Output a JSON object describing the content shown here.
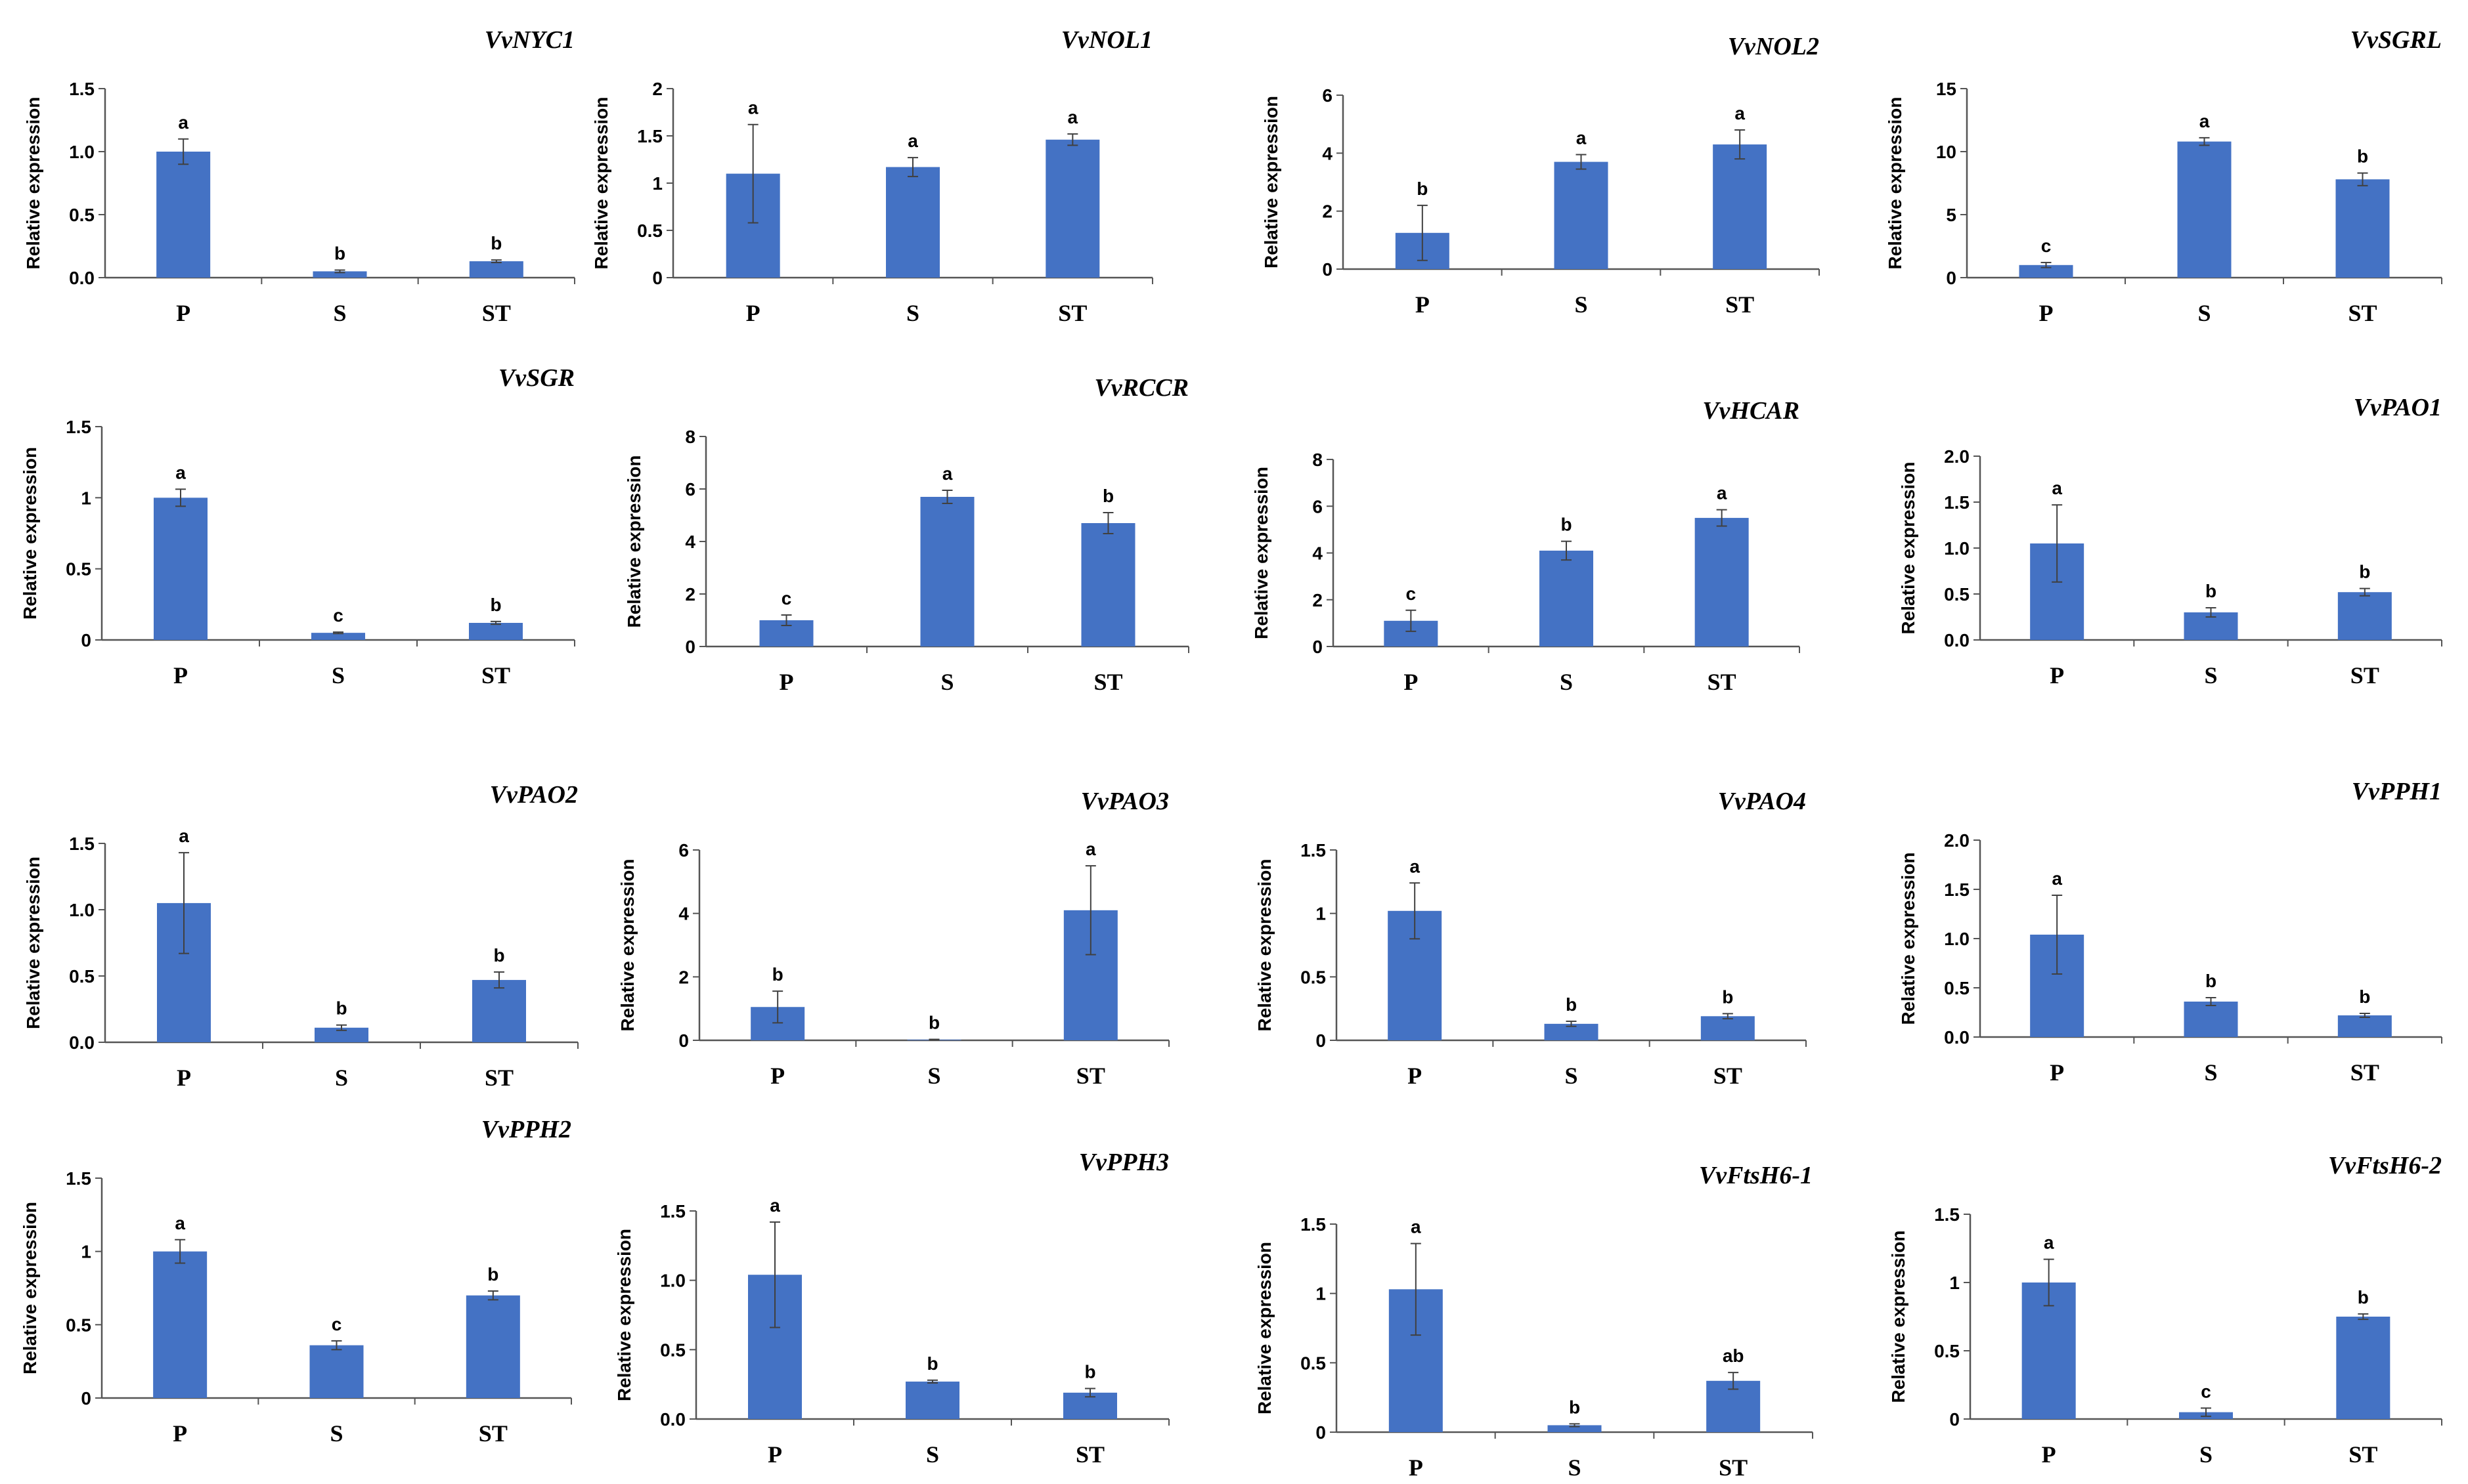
{
  "chart_data": [
    {
      "type": "bar",
      "title": "VvNYC1",
      "ylabel": "Relative expression",
      "categories": [
        "P",
        "S",
        "ST"
      ],
      "values": [
        1.0,
        0.05,
        0.13
      ],
      "errors": [
        0.1,
        0.01,
        0.01
      ],
      "letters": [
        "a",
        "b",
        "b"
      ],
      "ylim": [
        0,
        1.5
      ],
      "yticks": [
        0,
        0.5,
        1.0,
        1.5
      ],
      "ytick_labels": [
        "0.0",
        "0.5",
        "1.0",
        "1.5"
      ]
    },
    {
      "type": "bar",
      "title": "VvNOL1",
      "ylabel": "Relative expression",
      "categories": [
        "P",
        "S",
        "ST"
      ],
      "values": [
        1.1,
        1.17,
        1.46
      ],
      "errors": [
        0.52,
        0.1,
        0.06
      ],
      "letters": [
        "a",
        "a",
        "a"
      ],
      "ylim": [
        0,
        2
      ],
      "yticks": [
        0,
        0.5,
        1,
        1.5,
        2
      ],
      "ytick_labels": [
        "0",
        "0.5",
        "1",
        "1.5",
        "2"
      ]
    },
    {
      "type": "bar",
      "title": "VvNOL2",
      "ylabel": "Relative expression",
      "categories": [
        "P",
        "S",
        "ST"
      ],
      "values": [
        1.25,
        3.7,
        4.3
      ],
      "errors": [
        0.95,
        0.25,
        0.5
      ],
      "letters": [
        "b",
        "a",
        "a"
      ],
      "ylim": [
        0,
        6
      ],
      "yticks": [
        0,
        2,
        4,
        6
      ],
      "ytick_labels": [
        "0",
        "2",
        "4",
        "6"
      ]
    },
    {
      "type": "bar",
      "title": "VvSGRL",
      "ylabel": "Relative expression",
      "categories": [
        "P",
        "S",
        "ST"
      ],
      "values": [
        1.0,
        10.8,
        7.8
      ],
      "errors": [
        0.2,
        0.3,
        0.5
      ],
      "letters": [
        "c",
        "a",
        "b"
      ],
      "ylim": [
        0,
        15
      ],
      "yticks": [
        0,
        5,
        10,
        15
      ],
      "ytick_labels": [
        "0",
        "5",
        "10",
        "15"
      ]
    },
    {
      "type": "bar",
      "title": "VvSGR",
      "ylabel": "Relative expression",
      "categories": [
        "P",
        "S",
        "ST"
      ],
      "values": [
        1.0,
        0.05,
        0.12
      ],
      "errors": [
        0.06,
        0.005,
        0.01
      ],
      "letters": [
        "a",
        "c",
        "b"
      ],
      "ylim": [
        0,
        1.5
      ],
      "yticks": [
        0,
        0.5,
        1,
        1.5
      ],
      "ytick_labels": [
        "0",
        "0.5",
        "1",
        "1.5"
      ]
    },
    {
      "type": "bar",
      "title": "VvRCCR",
      "ylabel": "Relative expression",
      "categories": [
        "P",
        "S",
        "ST"
      ],
      "values": [
        1.0,
        5.7,
        4.7
      ],
      "errors": [
        0.2,
        0.25,
        0.4
      ],
      "letters": [
        "c",
        "a",
        "b"
      ],
      "ylim": [
        0,
        8
      ],
      "yticks": [
        0,
        2,
        4,
        6,
        8
      ],
      "ytick_labels": [
        "0",
        "2",
        "4",
        "6",
        "8"
      ]
    },
    {
      "type": "bar",
      "title": "VvHCAR",
      "ylabel": "Relative expression",
      "categories": [
        "P",
        "S",
        "ST"
      ],
      "values": [
        1.1,
        4.1,
        5.5
      ],
      "errors": [
        0.45,
        0.4,
        0.35
      ],
      "letters": [
        "c",
        "b",
        "a"
      ],
      "ylim": [
        0,
        8
      ],
      "yticks": [
        0,
        2,
        4,
        6,
        8
      ],
      "ytick_labels": [
        "0",
        "2",
        "4",
        "6",
        "8"
      ]
    },
    {
      "type": "bar",
      "title": "VvPAO1",
      "ylabel": "Relative expression",
      "categories": [
        "P",
        "S",
        "ST"
      ],
      "values": [
        1.05,
        0.3,
        0.52
      ],
      "errors": [
        0.42,
        0.05,
        0.04
      ],
      "letters": [
        "a",
        "b",
        "b"
      ],
      "ylim": [
        0,
        2.0
      ],
      "yticks": [
        0,
        0.5,
        1.0,
        1.5,
        2.0
      ],
      "ytick_labels": [
        "0.0",
        "0.5",
        "1.0",
        "1.5",
        "2.0"
      ]
    },
    {
      "type": "bar",
      "title": "VvPAO2",
      "ylabel": "Relative expression",
      "categories": [
        "P",
        "S",
        "ST"
      ],
      "values": [
        1.05,
        0.11,
        0.47
      ],
      "errors": [
        0.38,
        0.02,
        0.06
      ],
      "letters": [
        "a",
        "b",
        "b"
      ],
      "ylim": [
        0,
        1.5
      ],
      "yticks": [
        0,
        0.5,
        1.0,
        1.5
      ],
      "ytick_labels": [
        "0.0",
        "0.5",
        "1.0",
        "1.5"
      ]
    },
    {
      "type": "bar",
      "title": "VvPAO3",
      "ylabel": "Relative expression",
      "categories": [
        "P",
        "S",
        "ST"
      ],
      "values": [
        1.05,
        0.02,
        4.1
      ],
      "errors": [
        0.5,
        0.01,
        1.4
      ],
      "letters": [
        "b",
        "b",
        "a"
      ],
      "ylim": [
        0,
        6
      ],
      "yticks": [
        0,
        2,
        4,
        6
      ],
      "ytick_labels": [
        "0",
        "2",
        "4",
        "6"
      ]
    },
    {
      "type": "bar",
      "title": "VvPAO4",
      "ylabel": "Relative expression",
      "categories": [
        "P",
        "S",
        "ST"
      ],
      "values": [
        1.02,
        0.13,
        0.19
      ],
      "errors": [
        0.22,
        0.02,
        0.02
      ],
      "letters": [
        "a",
        "b",
        "b"
      ],
      "ylim": [
        0,
        1.5
      ],
      "yticks": [
        0,
        0.5,
        1,
        1.5
      ],
      "ytick_labels": [
        "0",
        "0.5",
        "1",
        "1.5"
      ]
    },
    {
      "type": "bar",
      "title": "VvPPH1",
      "ylabel": "Relative expression",
      "categories": [
        "P",
        "S",
        "ST"
      ],
      "values": [
        1.04,
        0.36,
        0.22
      ],
      "errors": [
        0.4,
        0.04,
        0.02
      ],
      "letters": [
        "a",
        "b",
        "b"
      ],
      "ylim": [
        0,
        2.0
      ],
      "yticks": [
        0,
        0.5,
        1.0,
        1.5,
        2.0
      ],
      "ytick_labels": [
        "0.0",
        "0.5",
        "1.0",
        "1.5",
        "2.0"
      ]
    },
    {
      "type": "bar",
      "title": "VvPPH2",
      "ylabel": "Relative expression",
      "categories": [
        "P",
        "S",
        "ST"
      ],
      "values": [
        1.0,
        0.36,
        0.7
      ],
      "errors": [
        0.08,
        0.03,
        0.03
      ],
      "letters": [
        "a",
        "c",
        "b"
      ],
      "ylim": [
        0,
        1.5
      ],
      "yticks": [
        0,
        0.5,
        1,
        1.5
      ],
      "ytick_labels": [
        "0",
        "0.5",
        "1",
        "1.5"
      ]
    },
    {
      "type": "bar",
      "title": "VvPPH3",
      "ylabel": "Relative expression",
      "categories": [
        "P",
        "S",
        "ST"
      ],
      "values": [
        1.04,
        0.27,
        0.19
      ],
      "errors": [
        0.38,
        0.01,
        0.03
      ],
      "letters": [
        "a",
        "b",
        "b"
      ],
      "ylim": [
        0,
        1.5
      ],
      "yticks": [
        0,
        0.5,
        1.0,
        1.5
      ],
      "ytick_labels": [
        "0.0",
        "0.5",
        "1.0",
        "1.5"
      ]
    },
    {
      "type": "bar",
      "title": "VvFtsH6-1",
      "ylabel": "Relative expression",
      "categories": [
        "P",
        "S",
        "ST"
      ],
      "values": [
        1.03,
        0.05,
        0.37
      ],
      "errors": [
        0.33,
        0.01,
        0.06
      ],
      "letters": [
        "a",
        "b",
        "ab"
      ],
      "ylim": [
        0,
        1.5
      ],
      "yticks": [
        0,
        0.5,
        1,
        1.5
      ],
      "ytick_labels": [
        "0",
        "0.5",
        "1",
        "1.5"
      ]
    },
    {
      "type": "bar",
      "title": "VvFtsH6-2",
      "ylabel": "Relative expression",
      "categories": [
        "P",
        "S",
        "ST"
      ],
      "values": [
        1.0,
        0.05,
        0.75
      ],
      "errors": [
        0.17,
        0.03,
        0.02
      ],
      "letters": [
        "a",
        "c",
        "b"
      ],
      "ylim": [
        0,
        1.5
      ],
      "yticks": [
        0,
        0.5,
        1,
        1.5
      ],
      "ytick_labels": [
        "0",
        "0.5",
        "1",
        "1.5"
      ]
    }
  ]
}
